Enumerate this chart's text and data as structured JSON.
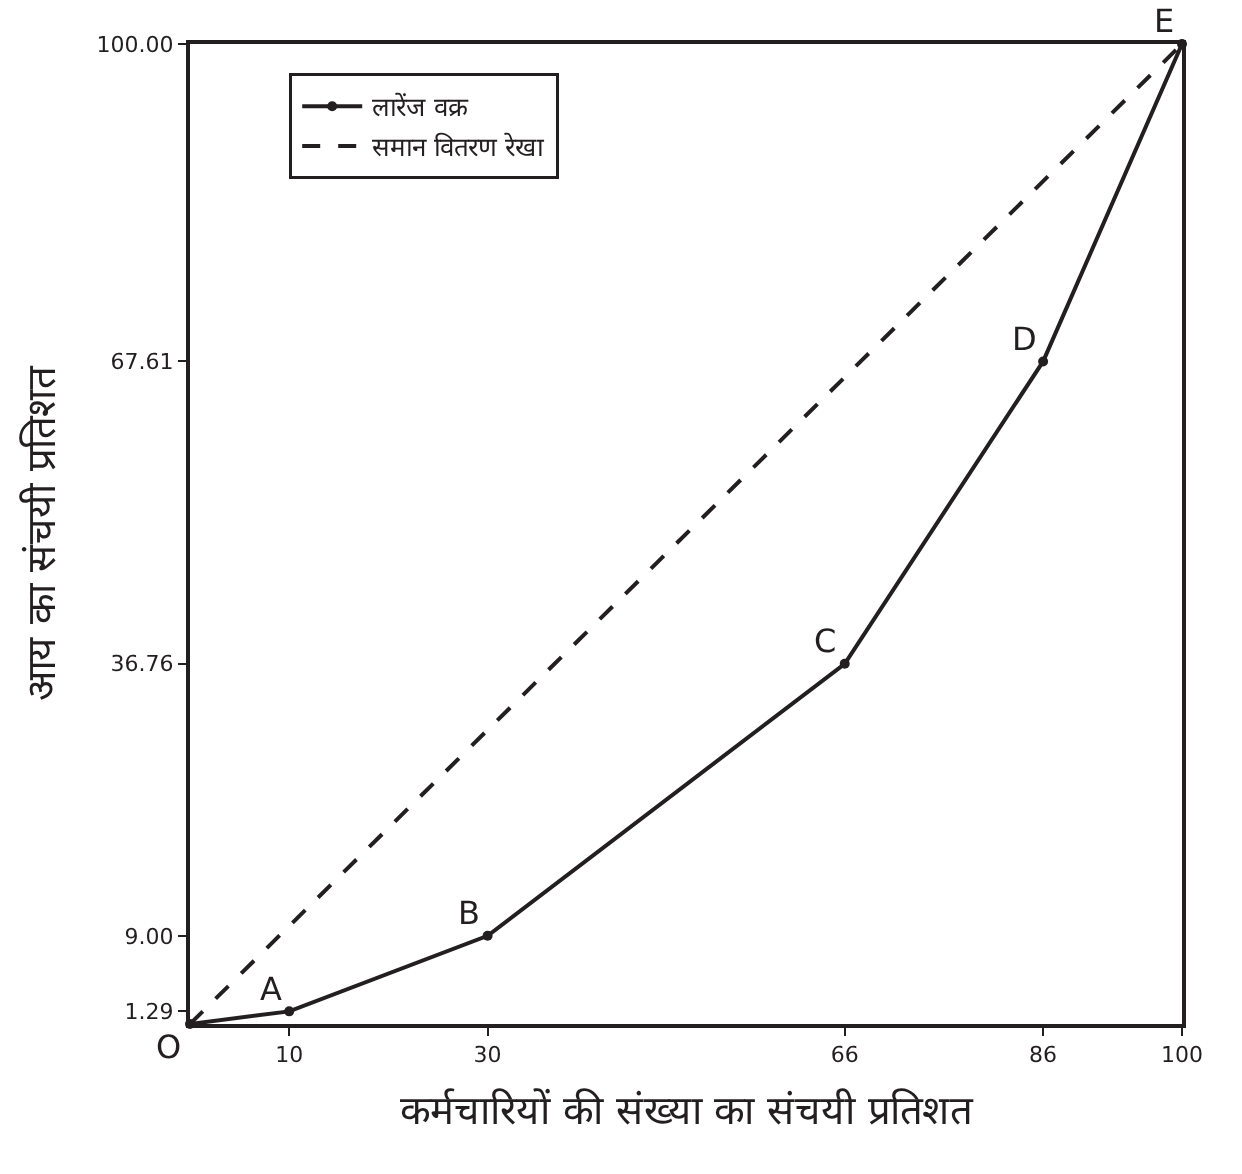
{
  "chart_data": {
    "type": "line",
    "xlabel": "कर्मचारियों की संख्या का संचयी प्रतिशत",
    "ylabel": "आय का संचयी प्रतिशत",
    "series": [
      {
        "name": "लारेंज वक्र",
        "color": "#231f20",
        "x": [
          0,
          10,
          30,
          66,
          86,
          100
        ],
        "values": [
          0,
          1.29,
          9.0,
          36.76,
          67.61,
          100
        ],
        "marker": "circle",
        "line_style": "solid"
      },
      {
        "name": "समान वितरण रेखा",
        "color": "#231f20",
        "x": [
          0,
          100
        ],
        "values": [
          0,
          100
        ],
        "marker": "none",
        "line_style": "dashed"
      }
    ],
    "annotations": [
      {
        "text": "O",
        "x": 0,
        "y": 0
      },
      {
        "text": "A",
        "x": 10,
        "y": 1.29
      },
      {
        "text": "B",
        "x": 30,
        "y": 9.0
      },
      {
        "text": "C",
        "x": 66,
        "y": 36.76
      },
      {
        "text": "D",
        "x": 86,
        "y": 67.61
      },
      {
        "text": "E",
        "x": 100,
        "y": 100
      }
    ],
    "xlim": [
      0,
      100
    ],
    "ylim": [
      0,
      100
    ],
    "xticks": [
      10,
      30,
      66,
      86,
      100
    ],
    "yticks": [
      1.29,
      {
        "value": 9,
        "label": "9.00"
      },
      {
        "value": 36.76,
        "label": "36.76"
      },
      {
        "value": 67.61,
        "label": "67.61"
      },
      {
        "value": 100,
        "label": "100.00"
      }
    ],
    "legend": "top left"
  }
}
